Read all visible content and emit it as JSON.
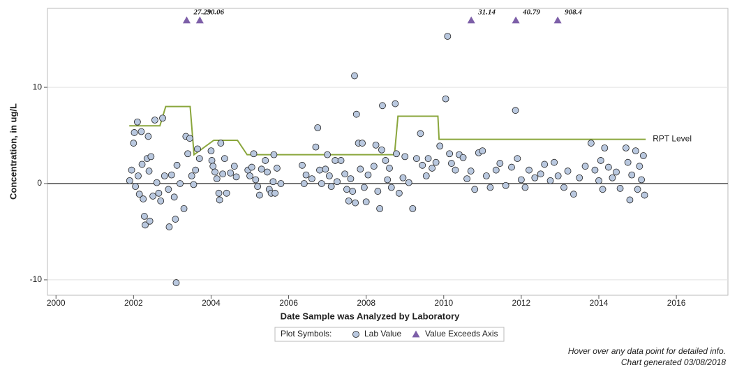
{
  "chart_data": {
    "type": "scatter",
    "x_label": "Date Sample was Analyzed by Laboratory",
    "y_label": "Concentration, in ug/L",
    "xlim": [
      1999.78,
      2017.33
    ],
    "xticks": [
      2000,
      2002,
      2004,
      2006,
      2008,
      2010,
      2012,
      2014,
      2016
    ],
    "ylim": [
      -11.6,
      18.2
    ],
    "yticks": [
      -10,
      0,
      10
    ],
    "grid": true,
    "legend_title": "Plot Symbols:",
    "series": [
      {
        "name": "Lab Value",
        "color": "#b9c8df",
        "x": [
          2001.9,
          2001.95,
          2002.0,
          2002.02,
          2002.05,
          2002.1,
          2002.12,
          2002.15,
          2002.2,
          2002.22,
          2002.25,
          2002.28,
          2002.3,
          2002.35,
          2002.38,
          2002.4,
          2002.42,
          2002.45,
          2002.5,
          2002.55,
          2002.6,
          2002.65,
          2002.7,
          2002.75,
          2002.8,
          2002.9,
          2002.92,
          2002.98,
          2003.05,
          2003.08,
          2003.1,
          2003.12,
          2003.2,
          2003.3,
          2003.35,
          2003.4,
          2003.45,
          2003.5,
          2003.55,
          2003.6,
          2003.65,
          2003.7,
          2004.0,
          2004.02,
          2004.05,
          2004.1,
          2004.15,
          2004.2,
          2004.22,
          2004.25,
          2004.3,
          2004.35,
          2004.4,
          2004.5,
          2004.6,
          2004.65,
          2004.95,
          2005.0,
          2005.05,
          2005.1,
          2005.15,
          2005.2,
          2005.25,
          2005.3,
          2005.4,
          2005.45,
          2005.5,
          2005.55,
          2005.6,
          2005.62,
          2005.65,
          2005.7,
          2005.8,
          2006.35,
          2006.4,
          2006.45,
          2006.6,
          2006.7,
          2006.75,
          2006.8,
          2006.85,
          2006.95,
          2007.0,
          2007.05,
          2007.1,
          2007.2,
          2007.25,
          2007.35,
          2007.45,
          2007.5,
          2007.55,
          2007.6,
          2007.65,
          2007.7,
          2007.75,
          2007.72,
          2007.8,
          2007.85,
          2007.9,
          2007.95,
          2008.0,
          2008.05,
          2008.2,
          2008.25,
          2008.3,
          2008.35,
          2008.4,
          2008.42,
          2008.5,
          2008.55,
          2008.6,
          2008.65,
          2008.75,
          2008.78,
          2008.85,
          2008.95,
          2009.0,
          2009.1,
          2009.2,
          2009.3,
          2009.4,
          2009.45,
          2009.55,
          2009.6,
          2009.7,
          2009.8,
          2009.9,
          2010.05,
          2010.1,
          2010.15,
          2010.2,
          2010.3,
          2010.4,
          2010.5,
          2010.6,
          2010.7,
          2010.8,
          2010.9,
          2011.0,
          2011.1,
          2011.2,
          2011.35,
          2011.45,
          2011.6,
          2011.75,
          2011.85,
          2011.9,
          2012.0,
          2012.1,
          2012.2,
          2012.35,
          2012.5,
          2012.6,
          2012.75,
          2012.85,
          2012.95,
          2013.1,
          2013.2,
          2013.35,
          2013.5,
          2013.65,
          2013.8,
          2013.9,
          2014.0,
          2014.05,
          2014.1,
          2014.15,
          2014.25,
          2014.35,
          2014.45,
          2014.55,
          2014.7,
          2014.75,
          2014.8,
          2014.85,
          2014.95,
          2015.0,
          2015.05,
          2015.1,
          2015.15,
          2015.18
        ],
        "values": [
          0.3,
          1.4,
          4.2,
          5.3,
          -0.3,
          6.4,
          0.8,
          -1.1,
          5.4,
          2.0,
          -1.6,
          -3.4,
          -4.3,
          2.6,
          4.9,
          1.3,
          -3.9,
          2.8,
          -1.3,
          6.6,
          0.1,
          -1.0,
          -1.8,
          6.8,
          0.8,
          -0.6,
          -4.5,
          0.9,
          -1.4,
          -3.7,
          -10.3,
          1.9,
          0.0,
          -2.6,
          4.9,
          3.1,
          4.7,
          0.8,
          -0.1,
          1.4,
          3.6,
          2.6,
          3.4,
          2.4,
          1.8,
          1.2,
          0.5,
          -1.0,
          -1.7,
          4.2,
          1.0,
          2.6,
          -1.0,
          1.1,
          1.8,
          0.7,
          1.4,
          0.8,
          1.7,
          3.1,
          0.4,
          -0.3,
          -1.2,
          1.5,
          2.4,
          1.2,
          -0.6,
          -1.0,
          0.2,
          3.0,
          -1.0,
          1.6,
          0.0,
          1.9,
          0.0,
          0.9,
          0.5,
          3.8,
          5.8,
          1.4,
          0.0,
          1.5,
          3.0,
          0.8,
          -0.3,
          2.4,
          0.2,
          2.4,
          1.0,
          -0.6,
          -1.8,
          0.5,
          -0.8,
          11.2,
          7.2,
          -2.0,
          4.2,
          1.5,
          4.2,
          -0.4,
          -1.9,
          0.9,
          1.8,
          4.0,
          -0.8,
          -2.6,
          3.5,
          8.1,
          2.4,
          0.4,
          1.6,
          -0.4,
          8.3,
          3.1,
          -1.0,
          0.6,
          2.8,
          0.1,
          -2.6,
          2.6,
          5.2,
          1.9,
          0.8,
          2.6,
          1.6,
          2.2,
          3.9,
          8.8,
          15.3,
          3.1,
          2.1,
          1.4,
          3.0,
          2.7,
          0.5,
          1.3,
          -0.6,
          3.2,
          3.4,
          0.8,
          -0.4,
          1.4,
          2.1,
          -0.2,
          1.7,
          7.6,
          2.6,
          0.4,
          -0.4,
          1.4,
          0.6,
          1.0,
          2.0,
          0.3,
          2.2,
          0.8,
          -0.4,
          1.3,
          -1.1,
          0.6,
          1.8,
          4.2,
          1.4,
          0.3,
          2.4,
          -0.6,
          3.7,
          1.7,
          0.6,
          1.2,
          -0.5,
          3.7,
          2.2,
          -1.7,
          0.9,
          3.4,
          -0.6,
          1.8,
          0.4,
          2.9,
          -1.2
        ]
      },
      {
        "name": "Value Exceeds Axis",
        "color": "#7d5fa8",
        "x": [
          2003.37,
          2003.71,
          2010.71,
          2011.86,
          2012.94
        ],
        "values": [
          27.29,
          30.06,
          31.14,
          40.79,
          908.4
        ]
      },
      {
        "name": "RPT Level",
        "color": "#8aa63c",
        "x": [
          2001.89,
          2002.68,
          2002.83,
          2003.46,
          2003.56,
          2004.07,
          2004.68,
          2004.93,
          2008.73,
          2008.82,
          2009.85,
          2009.88,
          2015.21
        ],
        "values": [
          6,
          6,
          8,
          8,
          3,
          4.5,
          4.5,
          3,
          3,
          7,
          7,
          4.6,
          4.6
        ]
      }
    ],
    "notes": [
      "Hover over any data point for detailed info.",
      "Chart generated 03/08/2018"
    ]
  }
}
